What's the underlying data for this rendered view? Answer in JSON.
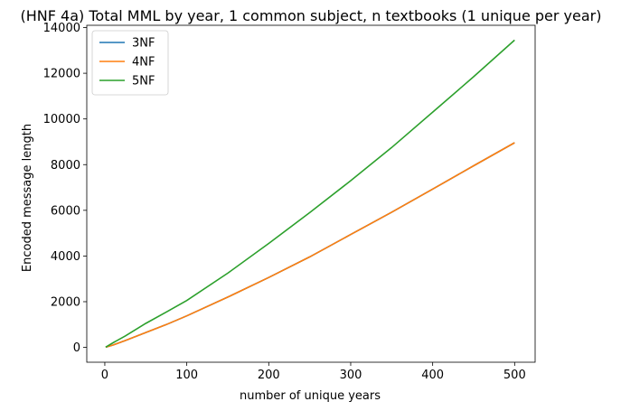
{
  "chart_data": {
    "type": "line",
    "title": "(HNF 4a) Total MML by year, 1 common subject, n textbooks (1 unique per year)",
    "xlabel": "number of unique years",
    "ylabel": "Encoded message length",
    "xlim": [
      -22,
      525
    ],
    "ylim": [
      -650,
      14100
    ],
    "xticks": [
      0,
      100,
      200,
      300,
      400,
      500
    ],
    "yticks": [
      0,
      2000,
      4000,
      6000,
      8000,
      10000,
      12000,
      14000
    ],
    "grid": false,
    "legend_position": "top-left",
    "x": [
      1,
      10,
      25,
      50,
      75,
      100,
      150,
      200,
      250,
      300,
      350,
      400,
      450,
      500
    ],
    "series": [
      {
        "name": "3NF",
        "color": "#1f77b4",
        "values": [
          10,
          100,
          300,
          650,
          1000,
          1380,
          2200,
          3060,
          3960,
          4940,
          5920,
          6930,
          7950,
          8960
        ]
      },
      {
        "name": "4NF",
        "color": "#ff7f0e",
        "values": [
          10,
          100,
          300,
          650,
          1000,
          1380,
          2200,
          3060,
          3960,
          4940,
          5920,
          6930,
          7950,
          8960
        ]
      },
      {
        "name": "5NF",
        "color": "#2ca02c",
        "values": [
          10,
          200,
          500,
          1050,
          1550,
          2050,
          3250,
          4550,
          5900,
          7300,
          8750,
          10300,
          11850,
          13450
        ]
      }
    ]
  }
}
